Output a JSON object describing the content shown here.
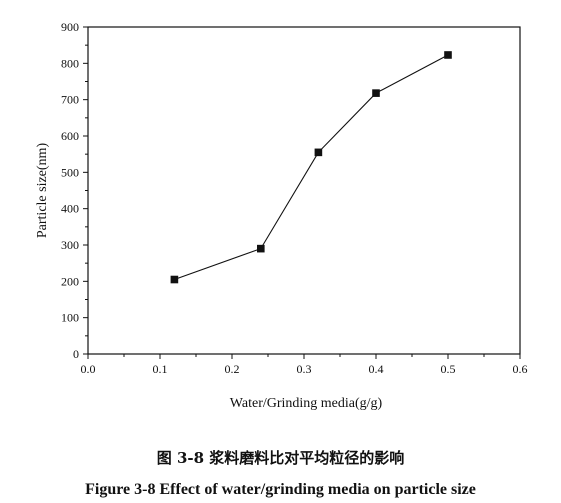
{
  "chart_data": {
    "type": "line",
    "xlabel": "Water/Grinding media(g/g)",
    "ylabel": "Particle size(nm)",
    "xlim": [
      0.0,
      0.6
    ],
    "ylim": [
      0,
      900
    ],
    "x_ticks": [
      "0.0",
      "0.1",
      "0.2",
      "0.3",
      "0.4",
      "0.5",
      "0.6"
    ],
    "y_ticks": [
      "0",
      "100",
      "200",
      "300",
      "400",
      "500",
      "600",
      "700",
      "800",
      "900"
    ],
    "grid": false,
    "marker": "square",
    "series": [
      {
        "x": [
          0.12,
          0.24,
          0.32,
          0.4,
          0.5
        ],
        "y": [
          205,
          290,
          555,
          718,
          823
        ]
      }
    ]
  },
  "captions": {
    "cn": "图 3-8 浆料磨料比对平均粒径的影响",
    "en": "Figure 3-8 Effect of water/grinding media on particle size"
  }
}
